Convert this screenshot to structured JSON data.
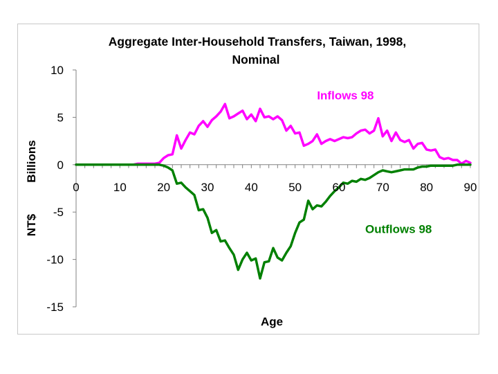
{
  "chart_data": {
    "type": "line",
    "title": "Aggregate Inter-Household Transfers, Taiwan, 1998,",
    "subtitle": "Nominal",
    "xlabel": "Age",
    "ylabel_lines": [
      "NT$",
      "Billions"
    ],
    "xlim": [
      0,
      90
    ],
    "ylim": [
      -15,
      10
    ],
    "x_ticks": [
      "0",
      "10",
      "20",
      "30",
      "40",
      "50",
      "60",
      "70",
      "80",
      "90"
    ],
    "y_ticks": [
      "10",
      "5",
      "0",
      "-5",
      "-10",
      "-15"
    ],
    "grid": false,
    "colors": {
      "inflows": "#ff00ff",
      "outflows": "#008000"
    },
    "series": [
      {
        "name": "Inflows 98",
        "color": "#ff00ff",
        "x": [
          0,
          1,
          2,
          3,
          4,
          5,
          6,
          7,
          8,
          9,
          10,
          11,
          12,
          13,
          14,
          15,
          16,
          17,
          18,
          19,
          20,
          21,
          22,
          23,
          24,
          25,
          26,
          27,
          28,
          29,
          30,
          31,
          32,
          33,
          34,
          35,
          36,
          37,
          38,
          39,
          40,
          41,
          42,
          43,
          44,
          45,
          46,
          47,
          48,
          49,
          50,
          51,
          52,
          53,
          54,
          55,
          56,
          57,
          58,
          59,
          60,
          61,
          62,
          63,
          64,
          65,
          66,
          67,
          68,
          69,
          70,
          71,
          72,
          73,
          74,
          75,
          76,
          77,
          78,
          79,
          80,
          81,
          82,
          83,
          84,
          85,
          86,
          87,
          88,
          89,
          90
        ],
        "values": [
          0,
          0,
          0,
          0,
          0,
          0,
          0,
          0,
          0,
          0,
          0,
          0,
          0,
          0,
          0.1,
          0.1,
          0.1,
          0.1,
          0.1,
          0.2,
          0.7,
          1.0,
          1.1,
          3.1,
          1.7,
          2.6,
          3.4,
          3.2,
          4.1,
          4.6,
          4.0,
          4.7,
          5.1,
          5.6,
          6.4,
          4.9,
          5.1,
          5.4,
          5.7,
          4.8,
          5.3,
          4.6,
          5.9,
          5.0,
          5.1,
          4.8,
          5.1,
          4.7,
          3.6,
          4.1,
          3.3,
          3.4,
          2.0,
          2.2,
          2.5,
          3.2,
          2.2,
          2.5,
          2.7,
          2.5,
          2.7,
          2.9,
          2.8,
          2.9,
          3.3,
          3.6,
          3.7,
          3.3,
          3.6,
          4.9,
          3.0,
          3.6,
          2.5,
          3.4,
          2.6,
          2.4,
          2.6,
          1.7,
          2.2,
          2.3,
          1.6,
          1.5,
          1.6,
          0.8,
          0.6,
          0.7,
          0.5,
          0.5,
          0.1,
          0.4,
          0.2
        ]
      },
      {
        "name": "Outflows 98",
        "color": "#008000",
        "x": [
          0,
          1,
          2,
          3,
          4,
          5,
          6,
          7,
          8,
          9,
          10,
          11,
          12,
          13,
          14,
          15,
          16,
          17,
          18,
          19,
          20,
          21,
          22,
          23,
          24,
          25,
          26,
          27,
          28,
          29,
          30,
          31,
          32,
          33,
          34,
          35,
          36,
          37,
          38,
          39,
          40,
          41,
          42,
          43,
          44,
          45,
          46,
          47,
          48,
          49,
          50,
          51,
          52,
          53,
          54,
          55,
          56,
          57,
          58,
          59,
          60,
          61,
          62,
          63,
          64,
          65,
          66,
          67,
          68,
          69,
          70,
          71,
          72,
          73,
          74,
          75,
          76,
          77,
          78,
          79,
          80,
          81,
          82,
          83,
          84,
          85,
          86,
          87,
          88,
          89,
          90
        ],
        "values": [
          0,
          0,
          0,
          0,
          0,
          0,
          0,
          0,
          0,
          0,
          0,
          0,
          0,
          0,
          0,
          0,
          0,
          0,
          0,
          0,
          -0.1,
          -0.3,
          -0.6,
          -2.0,
          -1.9,
          -2.4,
          -2.8,
          -3.2,
          -4.8,
          -4.7,
          -5.6,
          -7.2,
          -6.9,
          -8.1,
          -8.0,
          -8.8,
          -9.5,
          -11.1,
          -10.0,
          -9.3,
          -10.1,
          -9.9,
          -12.0,
          -10.3,
          -10.2,
          -8.8,
          -9.8,
          -10.1,
          -9.3,
          -8.6,
          -7.2,
          -6.1,
          -5.8,
          -3.8,
          -4.7,
          -4.3,
          -4.4,
          -3.9,
          -3.3,
          -2.8,
          -2.4,
          -1.9,
          -2.0,
          -1.7,
          -1.8,
          -1.5,
          -1.6,
          -1.4,
          -1.1,
          -0.8,
          -0.6,
          -0.7,
          -0.8,
          -0.7,
          -0.6,
          -0.5,
          -0.5,
          -0.5,
          -0.3,
          -0.2,
          -0.2,
          -0.1,
          -0.1,
          -0.1,
          -0.1,
          -0.1,
          -0.1,
          0,
          0,
          0,
          0
        ]
      }
    ],
    "annotations": [
      {
        "text": "Inflows 98",
        "x": 55,
        "y": 6.9,
        "series": 0
      },
      {
        "text": "Outflows 98",
        "x": 66,
        "y": -7.2,
        "series": 1
      }
    ]
  }
}
